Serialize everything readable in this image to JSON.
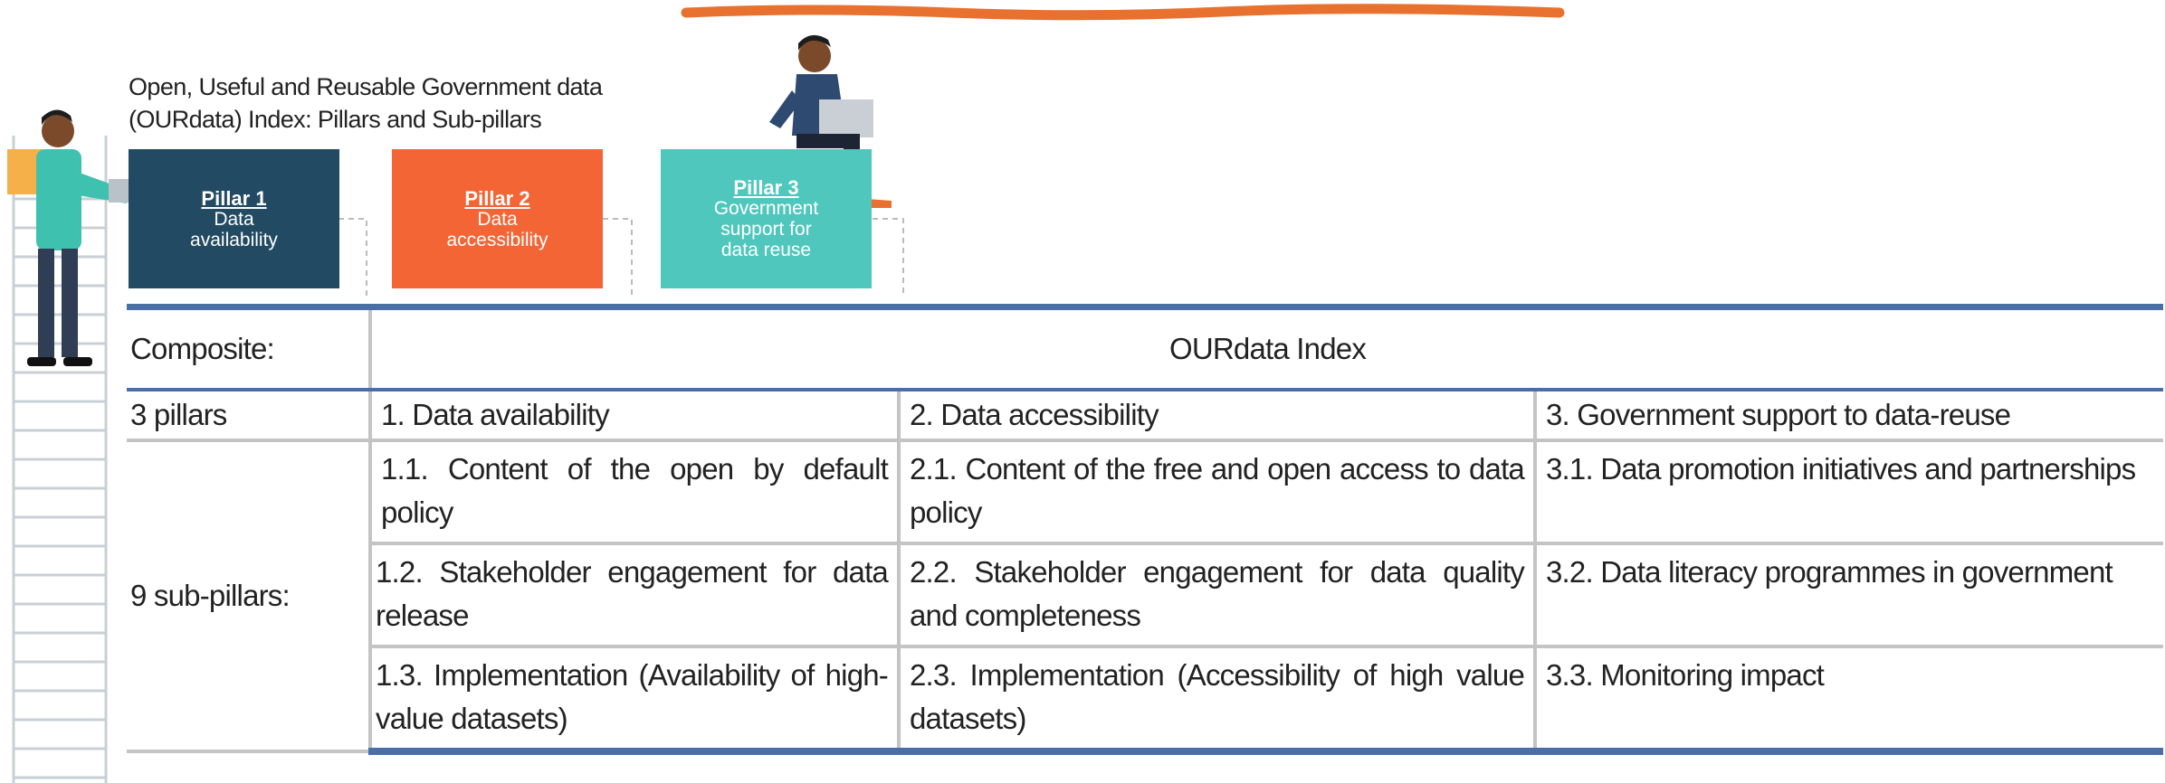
{
  "header": {
    "title": "Open, Useful and Reusable Government data (OURdata) Index: Pillars and Sub-pillars"
  },
  "pillars": [
    {
      "number": "Pillar 1",
      "label": "Data availability"
    },
    {
      "number": "Pillar 2",
      "label": "Data accessibility"
    },
    {
      "number": "Pillar 3",
      "label": "Government support for data reuse"
    }
  ],
  "table": {
    "composite": {
      "label": "Composite:",
      "value": "OURdata Index"
    },
    "pillars": {
      "label": "3 pillars",
      "cells": [
        "1. Data availability",
        "2. Data accessibility",
        "3. Government support to data-reuse"
      ]
    },
    "subpillars": {
      "label": "9 sub-pillars:",
      "rows": [
        [
          "1.1. Content of the open by default policy",
          "2.1. Content of the free and open access to data policy",
          "3.1. Data promotion initiatives and partnerships"
        ],
        [
          "1.2. Stakeholder engagement for data release",
          "2.2. Stakeholder engagement for data quality and completeness",
          "3.2. Data literacy programmes in government"
        ],
        [
          "1.3. Implementation (Availability of high-value datasets)",
          "2.3. Implementation (Accessibility of high value datasets)",
          "3.3. Monitoring impact"
        ]
      ]
    }
  }
}
